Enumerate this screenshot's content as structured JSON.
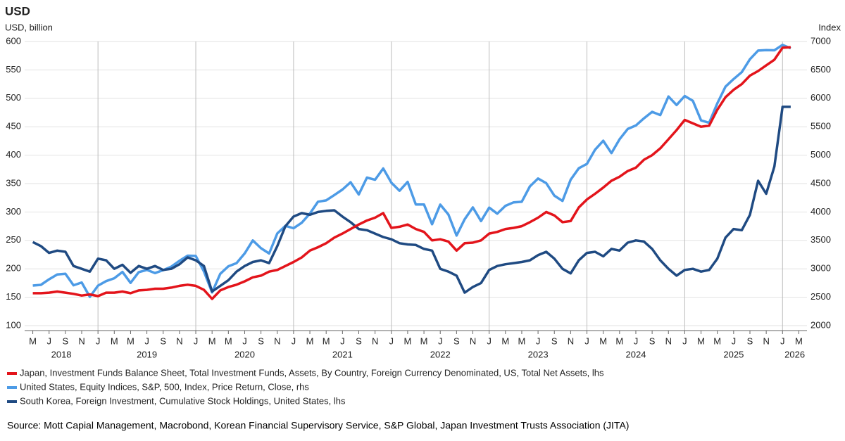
{
  "chart_data": {
    "type": "line",
    "title": "USD",
    "y_label": "USD, billion",
    "y2_label": "Index",
    "source": "Source: Mott Capial Management, Macrobond, Korean Financial Supervisory Service, S&P Global, Japan Investment Trusts Association (JITA)",
    "x": [
      "2018-05",
      "2018-06",
      "2018-07",
      "2018-08",
      "2018-09",
      "2018-10",
      "2018-11",
      "2018-12",
      "2019-01",
      "2019-02",
      "2019-03",
      "2019-04",
      "2019-05",
      "2019-06",
      "2019-07",
      "2019-08",
      "2019-09",
      "2019-10",
      "2019-11",
      "2019-12",
      "2020-01",
      "2020-02",
      "2020-03",
      "2020-04",
      "2020-05",
      "2020-06",
      "2020-07",
      "2020-08",
      "2020-09",
      "2020-10",
      "2020-11",
      "2020-12",
      "2021-01",
      "2021-02",
      "2021-03",
      "2021-04",
      "2021-05",
      "2021-06",
      "2021-07",
      "2021-08",
      "2021-09",
      "2021-10",
      "2021-11",
      "2021-12",
      "2022-01",
      "2022-02",
      "2022-03",
      "2022-04",
      "2022-05",
      "2022-06",
      "2022-07",
      "2022-08",
      "2022-09",
      "2022-10",
      "2022-11",
      "2022-12",
      "2023-01",
      "2023-02",
      "2023-03",
      "2023-04",
      "2023-05",
      "2023-06",
      "2023-07",
      "2023-08",
      "2023-09",
      "2023-10",
      "2023-11",
      "2023-12",
      "2024-01",
      "2024-02",
      "2024-03",
      "2024-04",
      "2024-05",
      "2024-06",
      "2024-07",
      "2024-08",
      "2024-09",
      "2024-10",
      "2024-11",
      "2024-12",
      "2025-01",
      "2025-02",
      "2025-03",
      "2025-04",
      "2025-05",
      "2025-06",
      "2025-07",
      "2025-08",
      "2025-09",
      "2025-10",
      "2025-11",
      "2025-12",
      "2026-01",
      "2026-02"
    ],
    "xlim": [
      "2018-04",
      "2026-04"
    ],
    "xticks": [
      {
        "value": "2018-05",
        "label": "M"
      },
      {
        "value": "2018-07",
        "label": "J"
      },
      {
        "value": "2018-09",
        "label": "S"
      },
      {
        "value": "2018-11",
        "label": "N"
      },
      {
        "value": "2019-01",
        "label": "J"
      },
      {
        "value": "2019-03",
        "label": "M"
      },
      {
        "value": "2019-05",
        "label": "M"
      },
      {
        "value": "2019-07",
        "label": "J"
      },
      {
        "value": "2019-09",
        "label": "S"
      },
      {
        "value": "2019-11",
        "label": "N"
      },
      {
        "value": "2020-01",
        "label": "J"
      },
      {
        "value": "2020-03",
        "label": "M"
      },
      {
        "value": "2020-05",
        "label": "M"
      },
      {
        "value": "2020-07",
        "label": "J"
      },
      {
        "value": "2020-09",
        "label": "S"
      },
      {
        "value": "2020-11",
        "label": "N"
      },
      {
        "value": "2021-01",
        "label": "J"
      },
      {
        "value": "2021-03",
        "label": "M"
      },
      {
        "value": "2021-05",
        "label": "M"
      },
      {
        "value": "2021-07",
        "label": "J"
      },
      {
        "value": "2021-09",
        "label": "S"
      },
      {
        "value": "2021-11",
        "label": "N"
      },
      {
        "value": "2022-01",
        "label": "J"
      },
      {
        "value": "2022-03",
        "label": "M"
      },
      {
        "value": "2022-05",
        "label": "M"
      },
      {
        "value": "2022-07",
        "label": "J"
      },
      {
        "value": "2022-09",
        "label": "S"
      },
      {
        "value": "2022-11",
        "label": "N"
      },
      {
        "value": "2023-01",
        "label": "J"
      },
      {
        "value": "2023-03",
        "label": "M"
      },
      {
        "value": "2023-05",
        "label": "M"
      },
      {
        "value": "2023-07",
        "label": "J"
      },
      {
        "value": "2023-09",
        "label": "S"
      },
      {
        "value": "2023-11",
        "label": "N"
      },
      {
        "value": "2024-01",
        "label": "J"
      },
      {
        "value": "2024-03",
        "label": "M"
      },
      {
        "value": "2024-05",
        "label": "M"
      },
      {
        "value": "2024-07",
        "label": "J"
      },
      {
        "value": "2024-09",
        "label": "S"
      },
      {
        "value": "2024-11",
        "label": "N"
      },
      {
        "value": "2025-01",
        "label": "J"
      },
      {
        "value": "2025-03",
        "label": "M"
      },
      {
        "value": "2025-05",
        "label": "M"
      },
      {
        "value": "2025-07",
        "label": "J"
      },
      {
        "value": "2025-09",
        "label": "S"
      },
      {
        "value": "2025-11",
        "label": "N"
      },
      {
        "value": "2026-01",
        "label": "J"
      },
      {
        "value": "2026-03",
        "label": "M"
      }
    ],
    "years": [
      "2018",
      "2019",
      "2020",
      "2021",
      "2022",
      "2023",
      "2024",
      "2025",
      "2026"
    ],
    "ylim": [
      100,
      600
    ],
    "yticks": [
      100,
      150,
      200,
      250,
      300,
      350,
      400,
      450,
      500,
      550,
      600
    ],
    "y2lim": [
      2000,
      7000
    ],
    "y2ticks": [
      2000,
      2500,
      3000,
      3500,
      4000,
      4500,
      5000,
      5500,
      6000,
      6500,
      7000
    ],
    "grid": true,
    "series": [
      {
        "name": "Japan, Investment Funds Balance Sheet, Total Investment Funds, Assets, By Country, Foreign Currency Denominated, US, Total Net Assets, lhs",
        "color": "#e3141b",
        "values": [
          157,
          157,
          158,
          160,
          158,
          156,
          153,
          155,
          152,
          158,
          158,
          160,
          157,
          162,
          163,
          165,
          165,
          167,
          170,
          172,
          170,
          163,
          147,
          162,
          168,
          172,
          178,
          185,
          188,
          195,
          198,
          205,
          212,
          220,
          232,
          238,
          245,
          255,
          262,
          270,
          278,
          285,
          290,
          298,
          272,
          274,
          278,
          270,
          265,
          250,
          252,
          248,
          232,
          245,
          246,
          250,
          262,
          265,
          270,
          272,
          275,
          282,
          290,
          300,
          294,
          282,
          284,
          308,
          322,
          332,
          343,
          355,
          362,
          372,
          378,
          392,
          400,
          412,
          428,
          444,
          462,
          456,
          450,
          452,
          480,
          502,
          515,
          525,
          540,
          548,
          558,
          568,
          589,
          590
        ]
      },
      {
        "name": "United States, Equity Indices, S&P, 500, Index, Price Return, Close, rhs",
        "color": "#4d9be6",
        "axis": "y2",
        "values": [
          2705,
          2718,
          2816,
          2901,
          2913,
          2711,
          2760,
          2506,
          2704,
          2784,
          2834,
          2946,
          2752,
          2942,
          2980,
          2926,
          2977,
          3038,
          3141,
          3231,
          3226,
          2954,
          2585,
          2912,
          3044,
          3100,
          3271,
          3500,
          3363,
          3270,
          3622,
          3756,
          3714,
          3811,
          3973,
          4181,
          4204,
          4298,
          4395,
          4523,
          4308,
          4605,
          4567,
          4766,
          4516,
          4374,
          4530,
          4132,
          4132,
          3785,
          4130,
          3955,
          3586,
          3872,
          4080,
          3840,
          4077,
          3970,
          4109,
          4169,
          4180,
          4450,
          4589,
          4508,
          4288,
          4194,
          4568,
          4770,
          4846,
          5096,
          5254,
          5036,
          5278,
          5460,
          5522,
          5648,
          5762,
          5705,
          6032,
          5882,
          6041,
          5955,
          5612,
          5569,
          5912,
          6205,
          6339,
          6460,
          6688,
          6840,
          6849,
          6845,
          6940,
          6880
        ]
      },
      {
        "name": "South Korea, Foreign Investment, Cumulative Stock Holdings, United States, lhs",
        "color": "#1f4a82",
        "values": [
          247,
          240,
          228,
          232,
          230,
          205,
          200,
          195,
          218,
          215,
          200,
          207,
          193,
          205,
          200,
          205,
          198,
          200,
          208,
          220,
          215,
          205,
          160,
          170,
          180,
          195,
          205,
          212,
          215,
          210,
          240,
          275,
          292,
          298,
          295,
          300,
          302,
          303,
          292,
          282,
          270,
          268,
          262,
          256,
          252,
          245,
          243,
          242,
          235,
          232,
          200,
          195,
          188,
          158,
          168,
          175,
          198,
          205,
          208,
          210,
          212,
          215,
          224,
          230,
          218,
          200,
          192,
          215,
          228,
          230,
          222,
          235,
          232,
          246,
          250,
          248,
          235,
          215,
          200,
          188,
          198,
          200,
          195,
          198,
          218,
          255,
          270,
          268,
          295,
          355,
          332,
          380,
          485,
          485
        ]
      }
    ]
  }
}
